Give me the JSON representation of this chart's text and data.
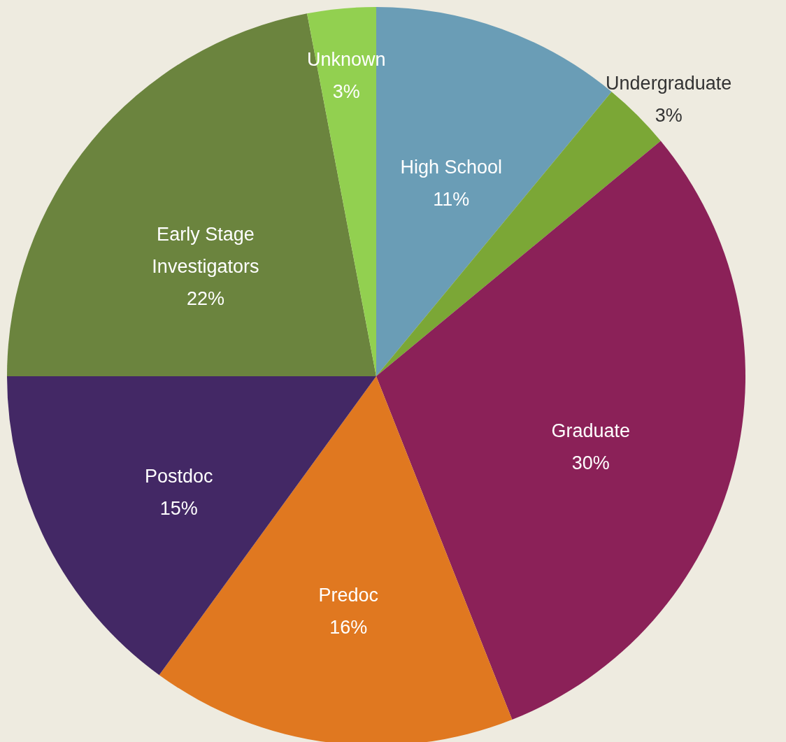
{
  "chart_data": {
    "type": "pie",
    "categories": [
      "High School",
      "Undergraduate",
      "Graduate",
      "Predoc",
      "Postdoc",
      "Early Stage Investigators",
      "Unknown"
    ],
    "values": [
      11,
      3,
      30,
      16,
      15,
      22,
      3
    ],
    "value_labels": [
      "11%",
      "3%",
      "30%",
      "16%",
      "15%",
      "22%",
      "3%"
    ],
    "colors": [
      "#6a9db6",
      "#7ba736",
      "#8b2158",
      "#e07820",
      "#432865",
      "#6b843e",
      "#92d050"
    ]
  }
}
